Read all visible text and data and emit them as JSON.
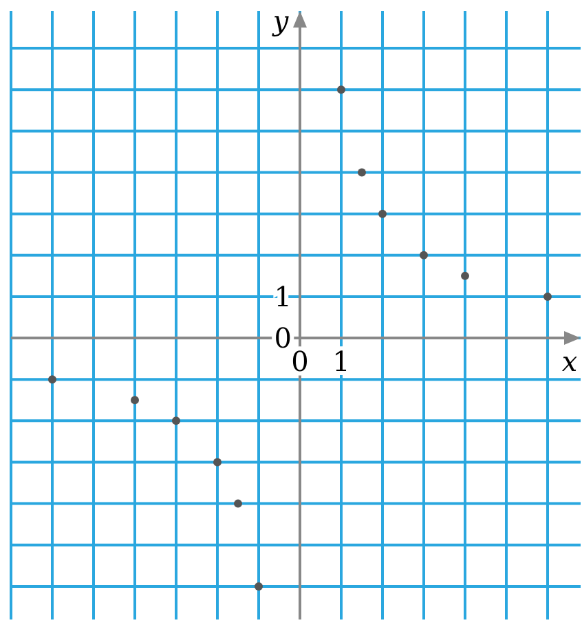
{
  "chart_data": {
    "type": "scatter",
    "xlabel": "x",
    "ylabel": "y",
    "xlim": [
      -7,
      6.8
    ],
    "ylim": [
      -6.8,
      7.9
    ],
    "xticks": [
      {
        "value": -7,
        "label": null
      },
      {
        "value": -6,
        "label": null
      },
      {
        "value": -5,
        "label": null
      },
      {
        "value": -4,
        "label": null
      },
      {
        "value": -3,
        "label": null
      },
      {
        "value": -2,
        "label": null
      },
      {
        "value": -1,
        "label": null
      },
      {
        "value": 0,
        "label": "0"
      },
      1,
      {
        "value": 2,
        "label": null
      },
      {
        "value": 3,
        "label": null
      },
      {
        "value": 4,
        "label": null
      },
      {
        "value": 5,
        "label": null
      },
      {
        "value": 6,
        "label": null
      }
    ],
    "yticks": [
      {
        "value": -6,
        "label": null
      },
      {
        "value": -5,
        "label": null
      },
      {
        "value": -4,
        "label": null
      },
      {
        "value": -3,
        "label": null
      },
      {
        "value": -2,
        "label": null
      },
      {
        "value": -1,
        "label": null
      },
      {
        "value": 0,
        "label": "0"
      },
      1,
      {
        "value": 2,
        "label": null
      },
      {
        "value": 3,
        "label": null
      },
      {
        "value": 4,
        "label": null
      },
      {
        "value": 5,
        "label": null
      },
      {
        "value": 6,
        "label": null
      },
      {
        "value": 7,
        "label": null
      }
    ],
    "grid": true,
    "marker": "circle",
    "series": [
      {
        "color": "#555555",
        "x": [
          -6,
          -4,
          -3,
          -2,
          -1.5,
          -1,
          1,
          1.5,
          2,
          3,
          4,
          6
        ],
        "values": [
          -1,
          -1.5,
          -2,
          -3,
          -4,
          -6,
          6,
          4,
          3,
          2,
          1.5,
          1
        ]
      }
    ]
  }
}
